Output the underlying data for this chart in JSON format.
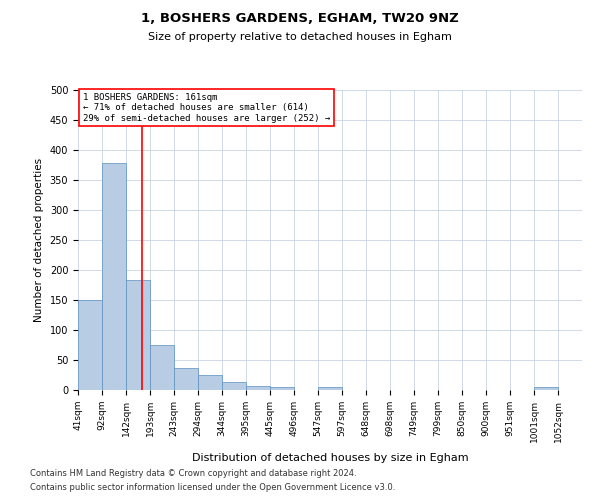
{
  "title": "1, BOSHERS GARDENS, EGHAM, TW20 9NZ",
  "subtitle": "Size of property relative to detached houses in Egham",
  "xlabel": "Distribution of detached houses by size in Egham",
  "ylabel": "Number of detached properties",
  "bar_labels": [
    "41sqm",
    "92sqm",
    "142sqm",
    "193sqm",
    "243sqm",
    "294sqm",
    "344sqm",
    "395sqm",
    "445sqm",
    "496sqm",
    "547sqm",
    "597sqm",
    "648sqm",
    "698sqm",
    "749sqm",
    "799sqm",
    "850sqm",
    "900sqm",
    "951sqm",
    "1001sqm",
    "1052sqm"
  ],
  "bar_values": [
    150,
    378,
    183,
    75,
    37,
    25,
    14,
    7,
    5,
    0,
    5,
    0,
    0,
    0,
    0,
    0,
    0,
    0,
    0,
    5,
    0
  ],
  "bar_color": "#b8cce4",
  "bar_edge_color": "#5a8fc2",
  "red_line_x": 2.65,
  "annotation_line1": "1 BOSHERS GARDENS: 161sqm",
  "annotation_line2": "← 71% of detached houses are smaller (614)",
  "annotation_line3": "29% of semi-detached houses are larger (252) →",
  "ylim": [
    0,
    500
  ],
  "yticks": [
    0,
    50,
    100,
    150,
    200,
    250,
    300,
    350,
    400,
    450,
    500
  ],
  "footer1": "Contains HM Land Registry data © Crown copyright and database right 2024.",
  "footer2": "Contains public sector information licensed under the Open Government Licence v3.0.",
  "background_color": "#ffffff",
  "grid_color": "#c8d4e3"
}
